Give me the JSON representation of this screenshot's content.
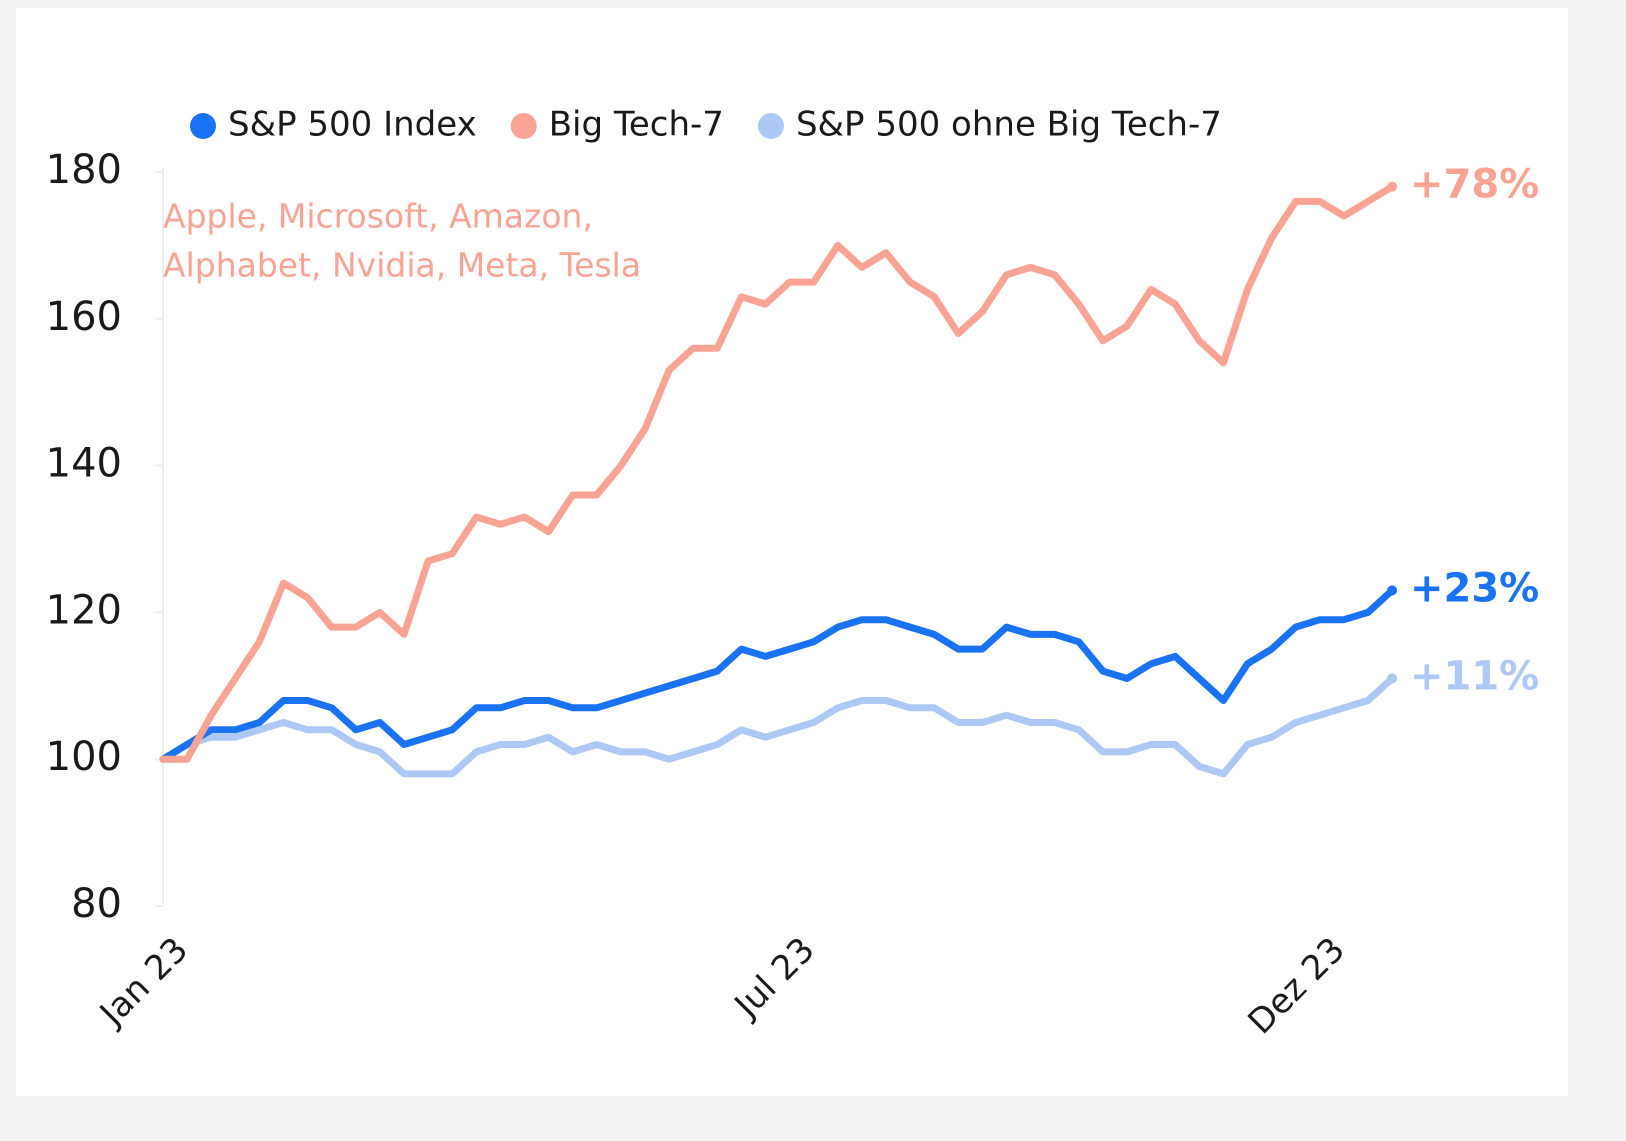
{
  "chart_data": {
    "type": "line",
    "annotation": [
      "Apple, Microsoft, Amazon,",
      "Alphabet, Nvidia, Meta, Tesla"
    ],
    "categories": [
      "Jan 23",
      null,
      null,
      null,
      null,
      null,
      null,
      null,
      null,
      null,
      null,
      null,
      null,
      null,
      null,
      null,
      null,
      null,
      null,
      null,
      null,
      null,
      null,
      null,
      null,
      null,
      "Jul 23",
      null,
      null,
      null,
      null,
      null,
      null,
      null,
      null,
      null,
      null,
      null,
      null,
      null,
      null,
      null,
      null,
      null,
      null,
      null,
      null,
      null,
      "Dez 23",
      null,
      null,
      null
    ],
    "series": [
      {
        "name": "S&P 500 Index",
        "color": "#1a73f5",
        "end_label": "+23%",
        "values": [
          100,
          102,
          104,
          104,
          105,
          108,
          108,
          107,
          104,
          105,
          102,
          103,
          104,
          107,
          107,
          108,
          108,
          107,
          107,
          108,
          109,
          110,
          111,
          112,
          115,
          114,
          115,
          116,
          118,
          119,
          119,
          118,
          117,
          115,
          115,
          118,
          117,
          117,
          116,
          112,
          111,
          113,
          114,
          111,
          108,
          113,
          115,
          118,
          119,
          119,
          120,
          123
        ]
      },
      {
        "name": "Big Tech-7",
        "color": "#f9a394",
        "end_label": "+78%",
        "values": [
          100,
          100,
          106,
          111,
          116,
          124,
          122,
          118,
          118,
          120,
          117,
          127,
          128,
          133,
          132,
          133,
          131,
          136,
          136,
          140,
          145,
          153,
          156,
          156,
          163,
          162,
          165,
          165,
          170,
          167,
          169,
          165,
          163,
          158,
          161,
          166,
          167,
          166,
          162,
          157,
          159,
          164,
          162,
          157,
          154,
          164,
          171,
          176,
          176,
          174,
          176,
          178
        ]
      },
      {
        "name": "S&P 500 ohne Big Tech-7",
        "color": "#adc8f5",
        "end_label": "+11%",
        "values": [
          100,
          102,
          103,
          103,
          104,
          105,
          104,
          104,
          102,
          101,
          98,
          98,
          98,
          101,
          102,
          102,
          103,
          101,
          102,
          101,
          101,
          100,
          101,
          102,
          104,
          103,
          104,
          105,
          107,
          108,
          108,
          107,
          107,
          105,
          105,
          106,
          105,
          105,
          104,
          101,
          101,
          102,
          102,
          99,
          98,
          102,
          103,
          105,
          106,
          107,
          108,
          111
        ]
      }
    ],
    "ylim": [
      80,
      180
    ],
    "yticks": [
      80,
      100,
      120,
      140,
      160,
      180
    ]
  }
}
